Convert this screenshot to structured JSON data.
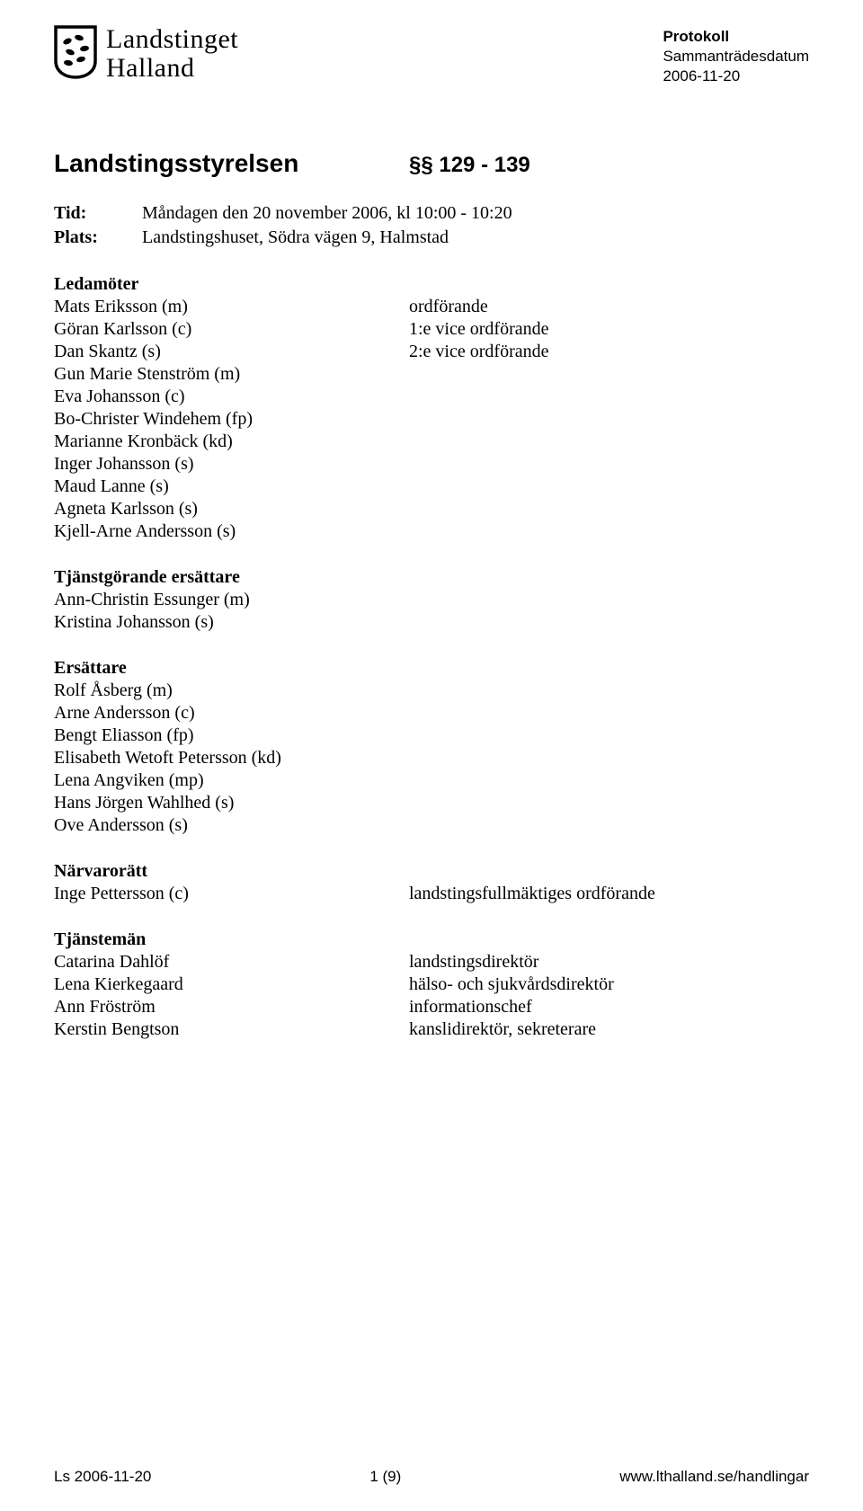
{
  "header": {
    "logo_line1": "Landstinget",
    "logo_line2": "Halland",
    "protokoll": "Protokoll",
    "subhead": "Sammanträdesdatum",
    "date": "2006-11-20"
  },
  "title": {
    "main": "Landstingsstyrelsen",
    "paragraphs": "§§ 129 - 139"
  },
  "info": {
    "tid_label": "Tid:",
    "tid_value": "Måndagen den 20 november 2006, kl 10:00 - 10:20",
    "plats_label": "Plats:",
    "plats_value": "Landstingshuset, Södra vägen 9, Halmstad"
  },
  "ledamoter": {
    "heading": "Ledamöter",
    "rows": [
      {
        "name": "Mats Eriksson (m)",
        "role": "ordförande"
      },
      {
        "name": "Göran Karlsson (c)",
        "role": "1:e vice ordförande"
      },
      {
        "name": "Dan Skantz (s)",
        "role": "2:e vice ordförande"
      },
      {
        "name": "Gun Marie Stenström (m)",
        "role": ""
      },
      {
        "name": "Eva Johansson (c)",
        "role": ""
      },
      {
        "name": "Bo-Christer Windehem (fp)",
        "role": ""
      },
      {
        "name": "Marianne Kronbäck (kd)",
        "role": ""
      },
      {
        "name": "Inger Johansson (s)",
        "role": ""
      },
      {
        "name": "Maud Lanne (s)",
        "role": ""
      },
      {
        "name": "Agneta Karlsson (s)",
        "role": ""
      },
      {
        "name": "Kjell-Arne Andersson (s)",
        "role": ""
      }
    ]
  },
  "tjanstgorande": {
    "heading": "Tjänstgörande ersättare",
    "rows": [
      "Ann-Christin Essunger (m)",
      "Kristina Johansson (s)"
    ]
  },
  "ersattare": {
    "heading": "Ersättare",
    "rows": [
      "Rolf Åsberg (m)",
      "Arne Andersson (c)",
      "Bengt Eliasson (fp)",
      "Elisabeth Wetoft Petersson (kd)",
      "Lena Angviken (mp)",
      "Hans Jörgen Wahlhed (s)",
      "Ove Andersson (s)"
    ]
  },
  "narvaroratt": {
    "heading": "Närvarorätt",
    "rows": [
      {
        "name": "Inge Pettersson (c)",
        "role": "landstingsfullmäktiges ordförande"
      }
    ]
  },
  "tjansteman": {
    "heading": "Tjänstemän",
    "rows": [
      {
        "name": "Catarina Dahlöf",
        "role": "landstingsdirektör"
      },
      {
        "name": "Lena Kierkegaard",
        "role": "hälso- och sjukvårdsdirektör"
      },
      {
        "name": "Ann Fröström",
        "role": "informationschef"
      },
      {
        "name": "Kerstin Bengtson",
        "role": "kanslidirektör, sekreterare"
      }
    ]
  },
  "footer": {
    "left": "Ls 2006-11-20",
    "center": "1 (9)",
    "right": "www.lthalland.se/handlingar"
  }
}
